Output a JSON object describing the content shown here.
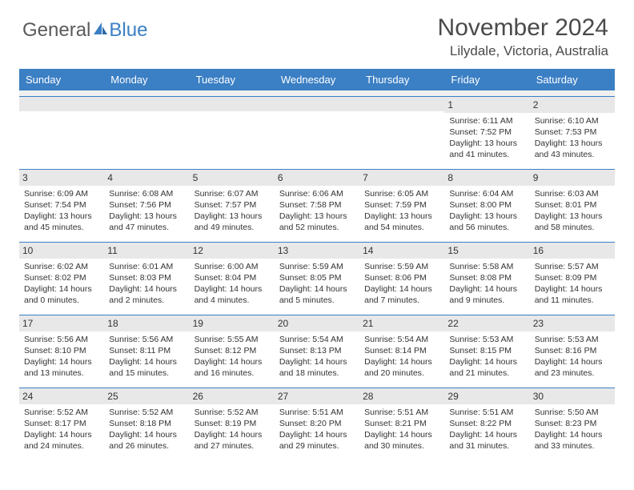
{
  "logo": {
    "general": "General",
    "blue": "Blue"
  },
  "header": {
    "month": "November 2024",
    "location": "Lilydale, Victoria, Australia"
  },
  "colors": {
    "accent": "#3b7fc4",
    "dayHeaderBg": "#e8e8e8",
    "text": "#333333",
    "bg": "#ffffff"
  },
  "dayNames": [
    "Sunday",
    "Monday",
    "Tuesday",
    "Wednesday",
    "Thursday",
    "Friday",
    "Saturday"
  ],
  "weeks": [
    [
      null,
      null,
      null,
      null,
      null,
      {
        "n": "1",
        "sr": "Sunrise: 6:11 AM",
        "ss": "Sunset: 7:52 PM",
        "d1": "Daylight: 13 hours",
        "d2": "and 41 minutes."
      },
      {
        "n": "2",
        "sr": "Sunrise: 6:10 AM",
        "ss": "Sunset: 7:53 PM",
        "d1": "Daylight: 13 hours",
        "d2": "and 43 minutes."
      }
    ],
    [
      {
        "n": "3",
        "sr": "Sunrise: 6:09 AM",
        "ss": "Sunset: 7:54 PM",
        "d1": "Daylight: 13 hours",
        "d2": "and 45 minutes."
      },
      {
        "n": "4",
        "sr": "Sunrise: 6:08 AM",
        "ss": "Sunset: 7:56 PM",
        "d1": "Daylight: 13 hours",
        "d2": "and 47 minutes."
      },
      {
        "n": "5",
        "sr": "Sunrise: 6:07 AM",
        "ss": "Sunset: 7:57 PM",
        "d1": "Daylight: 13 hours",
        "d2": "and 49 minutes."
      },
      {
        "n": "6",
        "sr": "Sunrise: 6:06 AM",
        "ss": "Sunset: 7:58 PM",
        "d1": "Daylight: 13 hours",
        "d2": "and 52 minutes."
      },
      {
        "n": "7",
        "sr": "Sunrise: 6:05 AM",
        "ss": "Sunset: 7:59 PM",
        "d1": "Daylight: 13 hours",
        "d2": "and 54 minutes."
      },
      {
        "n": "8",
        "sr": "Sunrise: 6:04 AM",
        "ss": "Sunset: 8:00 PM",
        "d1": "Daylight: 13 hours",
        "d2": "and 56 minutes."
      },
      {
        "n": "9",
        "sr": "Sunrise: 6:03 AM",
        "ss": "Sunset: 8:01 PM",
        "d1": "Daylight: 13 hours",
        "d2": "and 58 minutes."
      }
    ],
    [
      {
        "n": "10",
        "sr": "Sunrise: 6:02 AM",
        "ss": "Sunset: 8:02 PM",
        "d1": "Daylight: 14 hours",
        "d2": "and 0 minutes."
      },
      {
        "n": "11",
        "sr": "Sunrise: 6:01 AM",
        "ss": "Sunset: 8:03 PM",
        "d1": "Daylight: 14 hours",
        "d2": "and 2 minutes."
      },
      {
        "n": "12",
        "sr": "Sunrise: 6:00 AM",
        "ss": "Sunset: 8:04 PM",
        "d1": "Daylight: 14 hours",
        "d2": "and 4 minutes."
      },
      {
        "n": "13",
        "sr": "Sunrise: 5:59 AM",
        "ss": "Sunset: 8:05 PM",
        "d1": "Daylight: 14 hours",
        "d2": "and 5 minutes."
      },
      {
        "n": "14",
        "sr": "Sunrise: 5:59 AM",
        "ss": "Sunset: 8:06 PM",
        "d1": "Daylight: 14 hours",
        "d2": "and 7 minutes."
      },
      {
        "n": "15",
        "sr": "Sunrise: 5:58 AM",
        "ss": "Sunset: 8:08 PM",
        "d1": "Daylight: 14 hours",
        "d2": "and 9 minutes."
      },
      {
        "n": "16",
        "sr": "Sunrise: 5:57 AM",
        "ss": "Sunset: 8:09 PM",
        "d1": "Daylight: 14 hours",
        "d2": "and 11 minutes."
      }
    ],
    [
      {
        "n": "17",
        "sr": "Sunrise: 5:56 AM",
        "ss": "Sunset: 8:10 PM",
        "d1": "Daylight: 14 hours",
        "d2": "and 13 minutes."
      },
      {
        "n": "18",
        "sr": "Sunrise: 5:56 AM",
        "ss": "Sunset: 8:11 PM",
        "d1": "Daylight: 14 hours",
        "d2": "and 15 minutes."
      },
      {
        "n": "19",
        "sr": "Sunrise: 5:55 AM",
        "ss": "Sunset: 8:12 PM",
        "d1": "Daylight: 14 hours",
        "d2": "and 16 minutes."
      },
      {
        "n": "20",
        "sr": "Sunrise: 5:54 AM",
        "ss": "Sunset: 8:13 PM",
        "d1": "Daylight: 14 hours",
        "d2": "and 18 minutes."
      },
      {
        "n": "21",
        "sr": "Sunrise: 5:54 AM",
        "ss": "Sunset: 8:14 PM",
        "d1": "Daylight: 14 hours",
        "d2": "and 20 minutes."
      },
      {
        "n": "22",
        "sr": "Sunrise: 5:53 AM",
        "ss": "Sunset: 8:15 PM",
        "d1": "Daylight: 14 hours",
        "d2": "and 21 minutes."
      },
      {
        "n": "23",
        "sr": "Sunrise: 5:53 AM",
        "ss": "Sunset: 8:16 PM",
        "d1": "Daylight: 14 hours",
        "d2": "and 23 minutes."
      }
    ],
    [
      {
        "n": "24",
        "sr": "Sunrise: 5:52 AM",
        "ss": "Sunset: 8:17 PM",
        "d1": "Daylight: 14 hours",
        "d2": "and 24 minutes."
      },
      {
        "n": "25",
        "sr": "Sunrise: 5:52 AM",
        "ss": "Sunset: 8:18 PM",
        "d1": "Daylight: 14 hours",
        "d2": "and 26 minutes."
      },
      {
        "n": "26",
        "sr": "Sunrise: 5:52 AM",
        "ss": "Sunset: 8:19 PM",
        "d1": "Daylight: 14 hours",
        "d2": "and 27 minutes."
      },
      {
        "n": "27",
        "sr": "Sunrise: 5:51 AM",
        "ss": "Sunset: 8:20 PM",
        "d1": "Daylight: 14 hours",
        "d2": "and 29 minutes."
      },
      {
        "n": "28",
        "sr": "Sunrise: 5:51 AM",
        "ss": "Sunset: 8:21 PM",
        "d1": "Daylight: 14 hours",
        "d2": "and 30 minutes."
      },
      {
        "n": "29",
        "sr": "Sunrise: 5:51 AM",
        "ss": "Sunset: 8:22 PM",
        "d1": "Daylight: 14 hours",
        "d2": "and 31 minutes."
      },
      {
        "n": "30",
        "sr": "Sunrise: 5:50 AM",
        "ss": "Sunset: 8:23 PM",
        "d1": "Daylight: 14 hours",
        "d2": "and 33 minutes."
      }
    ]
  ]
}
